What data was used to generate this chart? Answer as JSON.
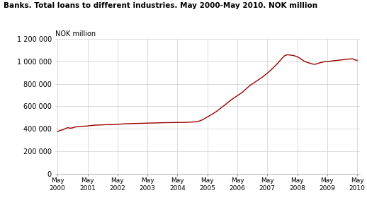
{
  "title": "Banks. Total loans to different industries. May 2000-May 2010. NOK million",
  "ylabel": "NOK million",
  "line_color": "#990000",
  "background_color": "#ffffff",
  "grid_color": "#cccccc",
  "ylim": [
    0,
    1200000
  ],
  "yticks": [
    0,
    200000,
    400000,
    600000,
    800000,
    1000000,
    1200000
  ],
  "ytick_labels": [
    "0",
    "200 000",
    "400 000",
    "600 000",
    "800 000",
    "1 000 000",
    "1 200 000"
  ],
  "xtick_labels": [
    "May\n2000",
    "May\n2001",
    "May\n2002",
    "May\n2003",
    "May\n2004",
    "May\n2005",
    "May\n2006",
    "May\n2007",
    "May\n2008",
    "May\n2009",
    "May\n2010"
  ],
  "data_y": [
    375000,
    385000,
    390000,
    400000,
    410000,
    405000,
    408000,
    415000,
    418000,
    420000,
    422000,
    423000,
    425000,
    428000,
    430000,
    432000,
    433000,
    434000,
    435000,
    436000,
    437000,
    437000,
    438000,
    438000,
    440000,
    441000,
    443000,
    444000,
    445000,
    446000,
    447000,
    447000,
    448000,
    448000,
    449000,
    449000,
    450000,
    451000,
    451000,
    452000,
    452000,
    453000,
    454000,
    454000,
    455000,
    455000,
    455000,
    456000,
    456000,
    456000,
    457000,
    457000,
    458000,
    459000,
    460000,
    462000,
    465000,
    470000,
    480000,
    492000,
    505000,
    518000,
    530000,
    545000,
    560000,
    578000,
    595000,
    612000,
    630000,
    648000,
    665000,
    680000,
    695000,
    710000,
    725000,
    745000,
    765000,
    785000,
    800000,
    815000,
    830000,
    845000,
    860000,
    878000,
    895000,
    915000,
    935000,
    958000,
    980000,
    1005000,
    1030000,
    1052000,
    1060000,
    1058000,
    1055000,
    1050000,
    1042000,
    1030000,
    1015000,
    1000000,
    992000,
    985000,
    978000,
    975000,
    980000,
    988000,
    993000,
    998000,
    1000000,
    1002000,
    1005000,
    1008000,
    1010000,
    1012000,
    1015000,
    1018000,
    1020000,
    1022000,
    1025000,
    1015000,
    1010000
  ]
}
